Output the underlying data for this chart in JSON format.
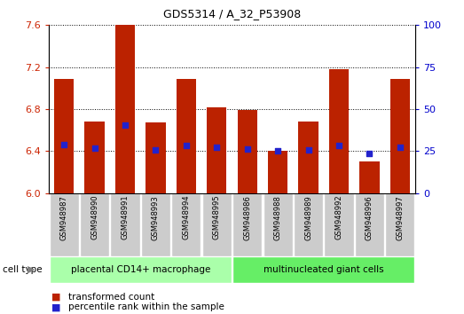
{
  "title": "GDS5314 / A_32_P53908",
  "samples": [
    "GSM948987",
    "GSM948990",
    "GSM948991",
    "GSM948993",
    "GSM948994",
    "GSM948995",
    "GSM948986",
    "GSM948988",
    "GSM948989",
    "GSM948992",
    "GSM948996",
    "GSM948997"
  ],
  "bar_values": [
    7.09,
    6.68,
    7.6,
    6.67,
    7.09,
    6.82,
    6.79,
    6.4,
    6.68,
    7.18,
    6.3,
    7.09
  ],
  "dot_values": [
    6.46,
    6.43,
    6.65,
    6.41,
    6.45,
    6.44,
    6.42,
    6.4,
    6.41,
    6.45,
    6.38,
    6.44
  ],
  "bar_color": "#bb2200",
  "dot_color": "#2222cc",
  "ylim_left": [
    6.0,
    7.6
  ],
  "ylim_right": [
    0,
    100
  ],
  "yticks_left": [
    6.0,
    6.4,
    6.8,
    7.2,
    7.6
  ],
  "yticks_right": [
    0,
    25,
    50,
    75,
    100
  ],
  "groups": [
    {
      "label": "placental CD14+ macrophage",
      "indices": [
        0,
        1,
        2,
        3,
        4,
        5
      ],
      "color": "#aaffaa"
    },
    {
      "label": "multinucleated giant cells",
      "indices": [
        6,
        7,
        8,
        9,
        10,
        11
      ],
      "color": "#66ee66"
    }
  ],
  "cell_type_label": "cell type",
  "legend_bar_label": "transformed count",
  "legend_dot_label": "percentile rank within the sample",
  "tick_label_color_left": "#cc2200",
  "tick_label_color_right": "#0000cc",
  "bar_bottom": 6.0,
  "bar_width": 0.65,
  "sample_box_color": "#cccccc",
  "title_fontsize": 9,
  "axis_fontsize": 8,
  "label_fontsize": 7
}
